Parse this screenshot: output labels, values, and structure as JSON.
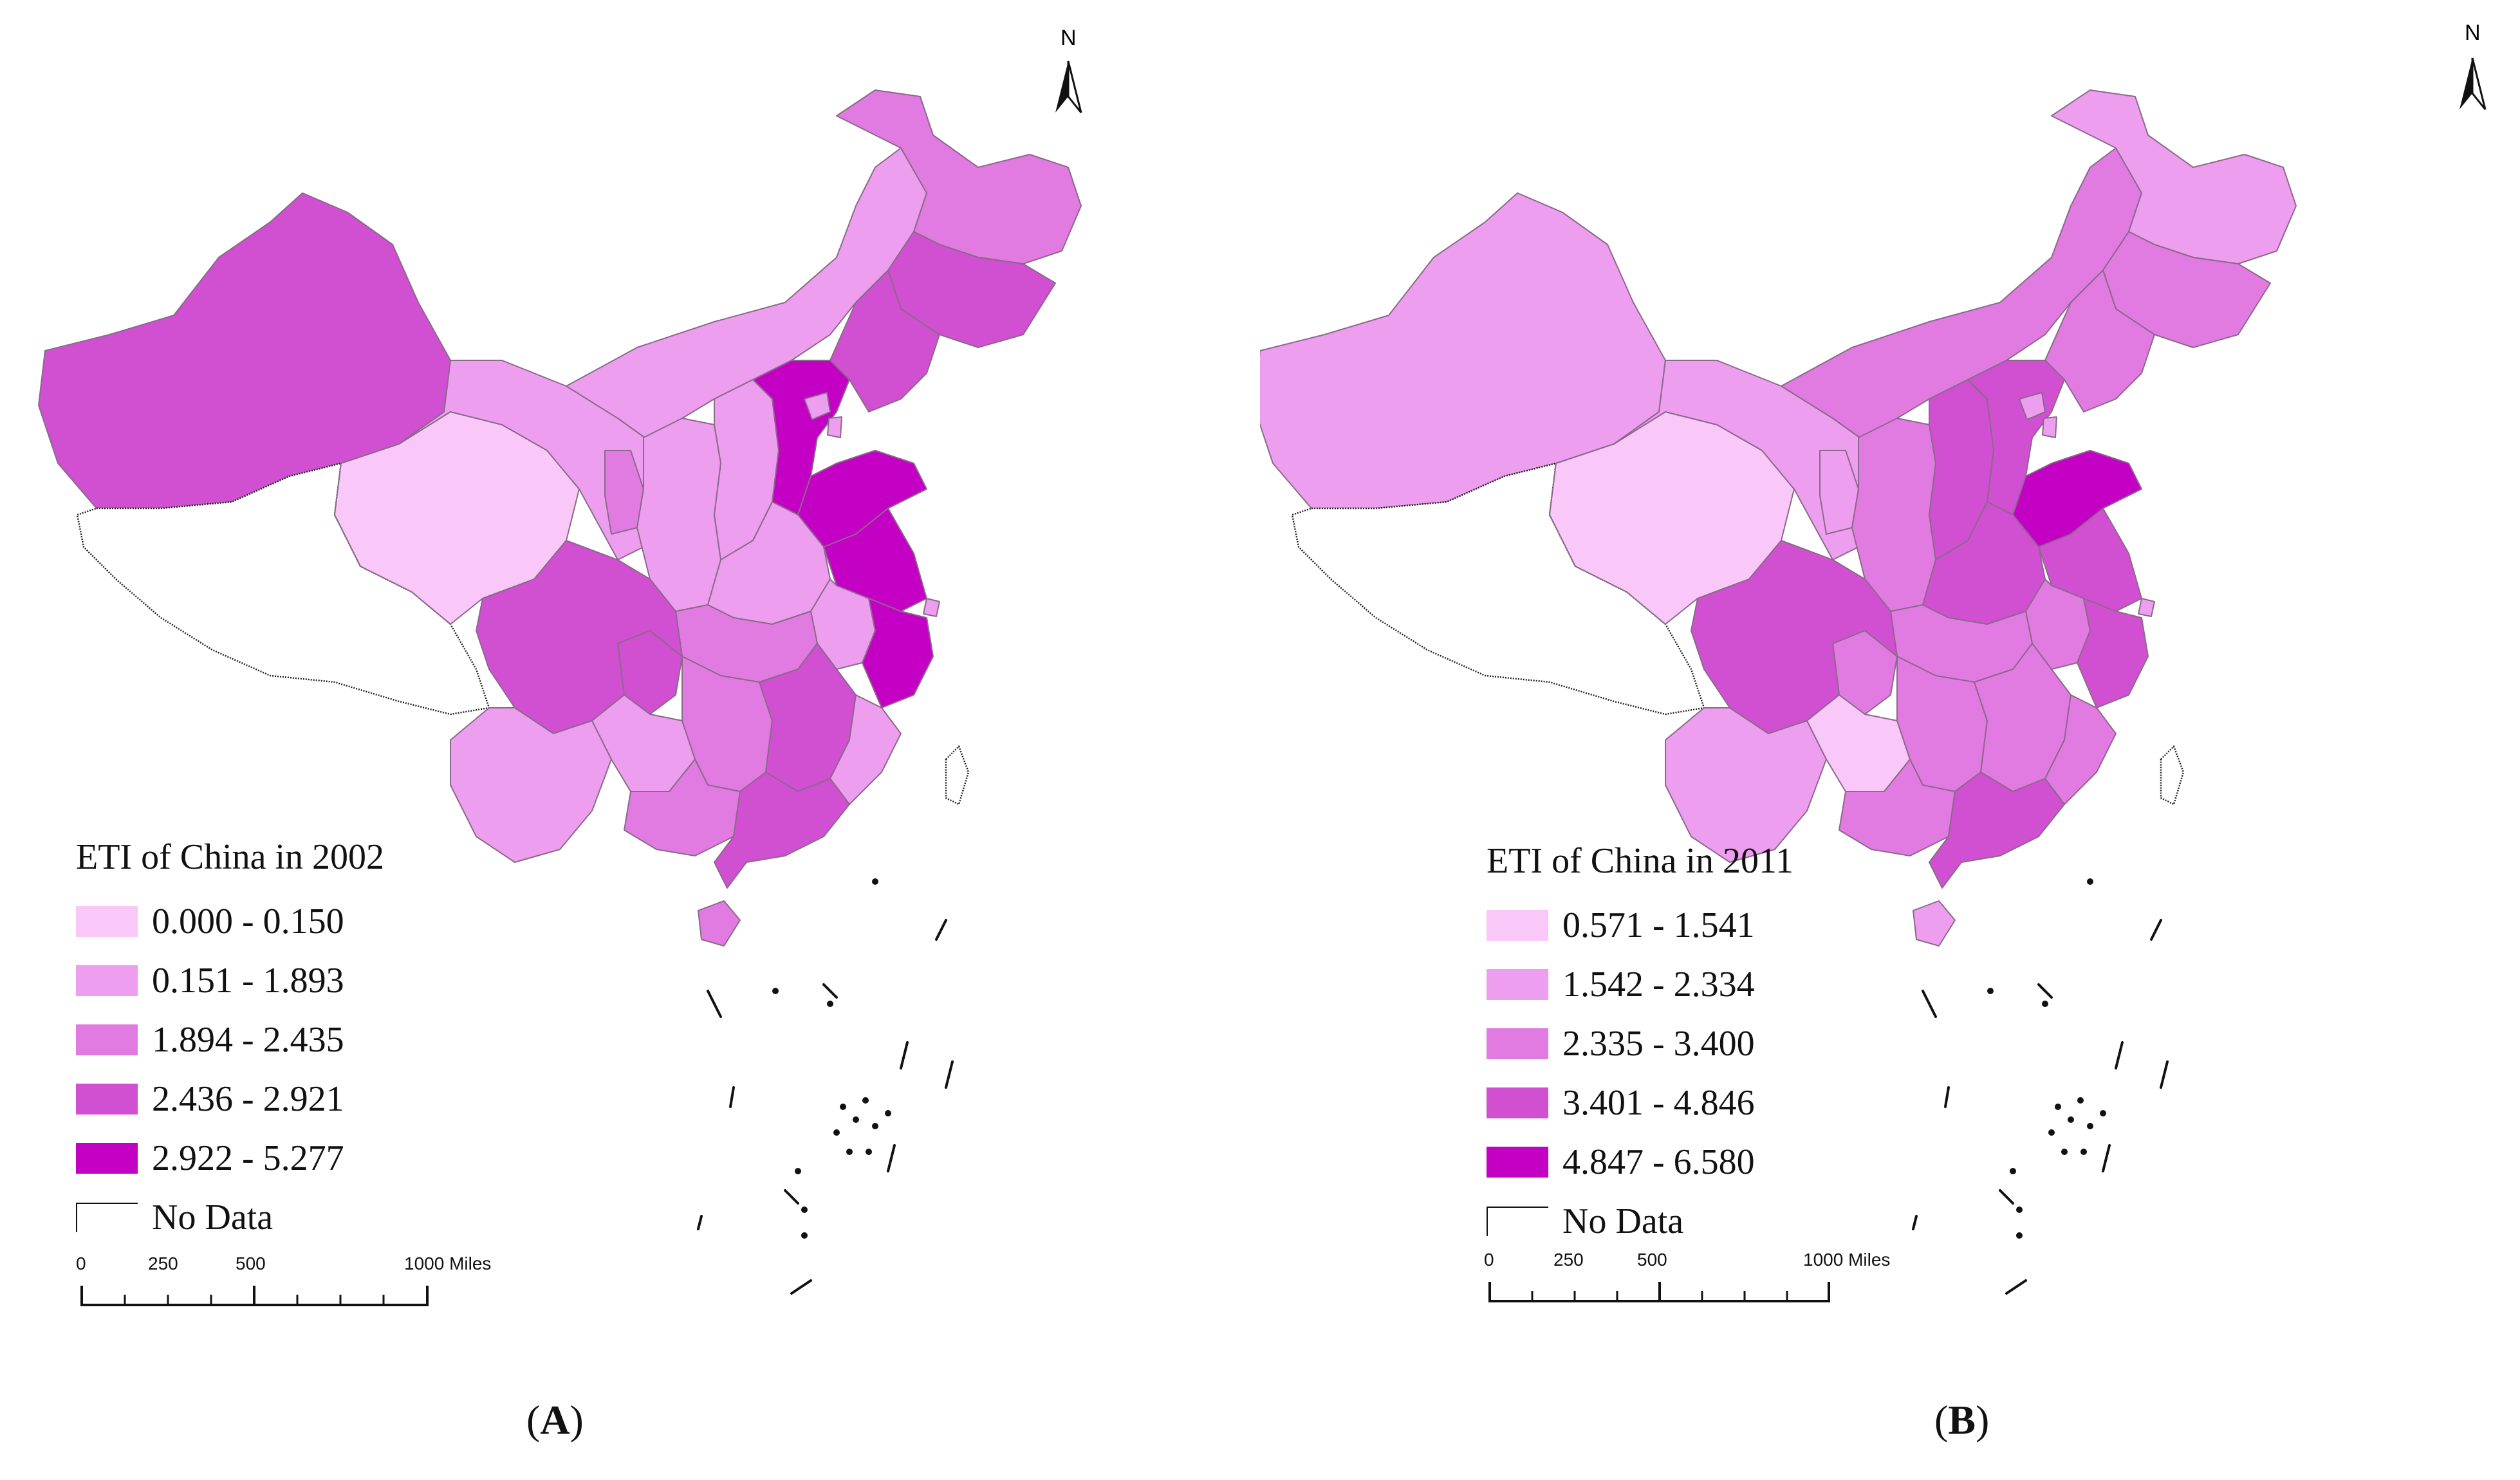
{
  "figure": {
    "panels": [
      {
        "id": "A",
        "caption_letter": "A",
        "legend": {
          "title": "ETI of China in 2002",
          "classes": [
            {
              "label": "0.000 - 0.150",
              "color": "#f9c8f9"
            },
            {
              "label": "0.151 - 1.893",
              "color": "#ee9eee"
            },
            {
              "label": "1.894 - 2.435",
              "color": "#e17ae1"
            },
            {
              "label": "2.436 - 2.921",
              "color": "#d14fd1"
            },
            {
              "label": "2.922 - 5.277",
              "color": "#c400c4"
            }
          ],
          "nodata_label": "No Data"
        },
        "scale": {
          "labels": [
            "0",
            "250",
            "500",
            "1000 Miles"
          ]
        },
        "north_label": "N"
      },
      {
        "id": "B",
        "caption_letter": "B",
        "legend": {
          "title": "ETI of China in 2011",
          "classes": [
            {
              "label": "0.571 - 1.541",
              "color": "#f9c8f9"
            },
            {
              "label": "1.542 - 2.334",
              "color": "#ee9eee"
            },
            {
              "label": "2.335 - 3.400",
              "color": "#e17ae1"
            },
            {
              "label": "3.401 - 4.846",
              "color": "#d14fd1"
            },
            {
              "label": "4.847 - 6.580",
              "color": "#c400c4"
            }
          ],
          "nodata_label": "No Data"
        },
        "scale": {
          "labels": [
            "0",
            "250",
            "500",
            "1000 Miles"
          ]
        },
        "north_label": "N"
      }
    ]
  },
  "map_regions": {
    "panel_a_classes": {
      "xinjiang": 3,
      "tibet": -1,
      "qinghai": 0,
      "gansu": 1,
      "inner-mongolia": 1,
      "heilongjiang": 2,
      "jilin": 3,
      "liaoning": 3,
      "ningxia": 2,
      "shaanxi": 1,
      "shanxi": 1,
      "hebei": 4,
      "beijing": 1,
      "tianjin": 1,
      "shandong": 4,
      "henan": 1,
      "jiangsu": 4,
      "anhui": 1,
      "shanghai": 1,
      "zhejiang": 4,
      "hubei": 2,
      "sichuan": 3,
      "chongqing": 3,
      "yunnan": 1,
      "guizhou": 1,
      "hunan": 2,
      "jiangxi": 3,
      "fujian": 1,
      "guangxi": 2,
      "guangdong": 3,
      "hainan": 2,
      "taiwan": -1
    },
    "panel_b_classes": {
      "xinjiang": 1,
      "tibet": -1,
      "qinghai": 0,
      "gansu": 1,
      "inner-mongolia": 2,
      "heilongjiang": 1,
      "jilin": 2,
      "liaoning": 2,
      "ningxia": 1,
      "shaanxi": 2,
      "shanxi": 3,
      "hebei": 3,
      "beijing": 1,
      "tianjin": 1,
      "shandong": 4,
      "henan": 3,
      "jiangsu": 3,
      "anhui": 2,
      "shanghai": 1,
      "zhejiang": 3,
      "hubei": 2,
      "sichuan": 3,
      "chongqing": 2,
      "yunnan": 1,
      "guizhou": 0,
      "hunan": 2,
      "jiangxi": 2,
      "fujian": 2,
      "guangxi": 2,
      "guangdong": 3,
      "hainan": 1,
      "taiwan": -1
    }
  }
}
